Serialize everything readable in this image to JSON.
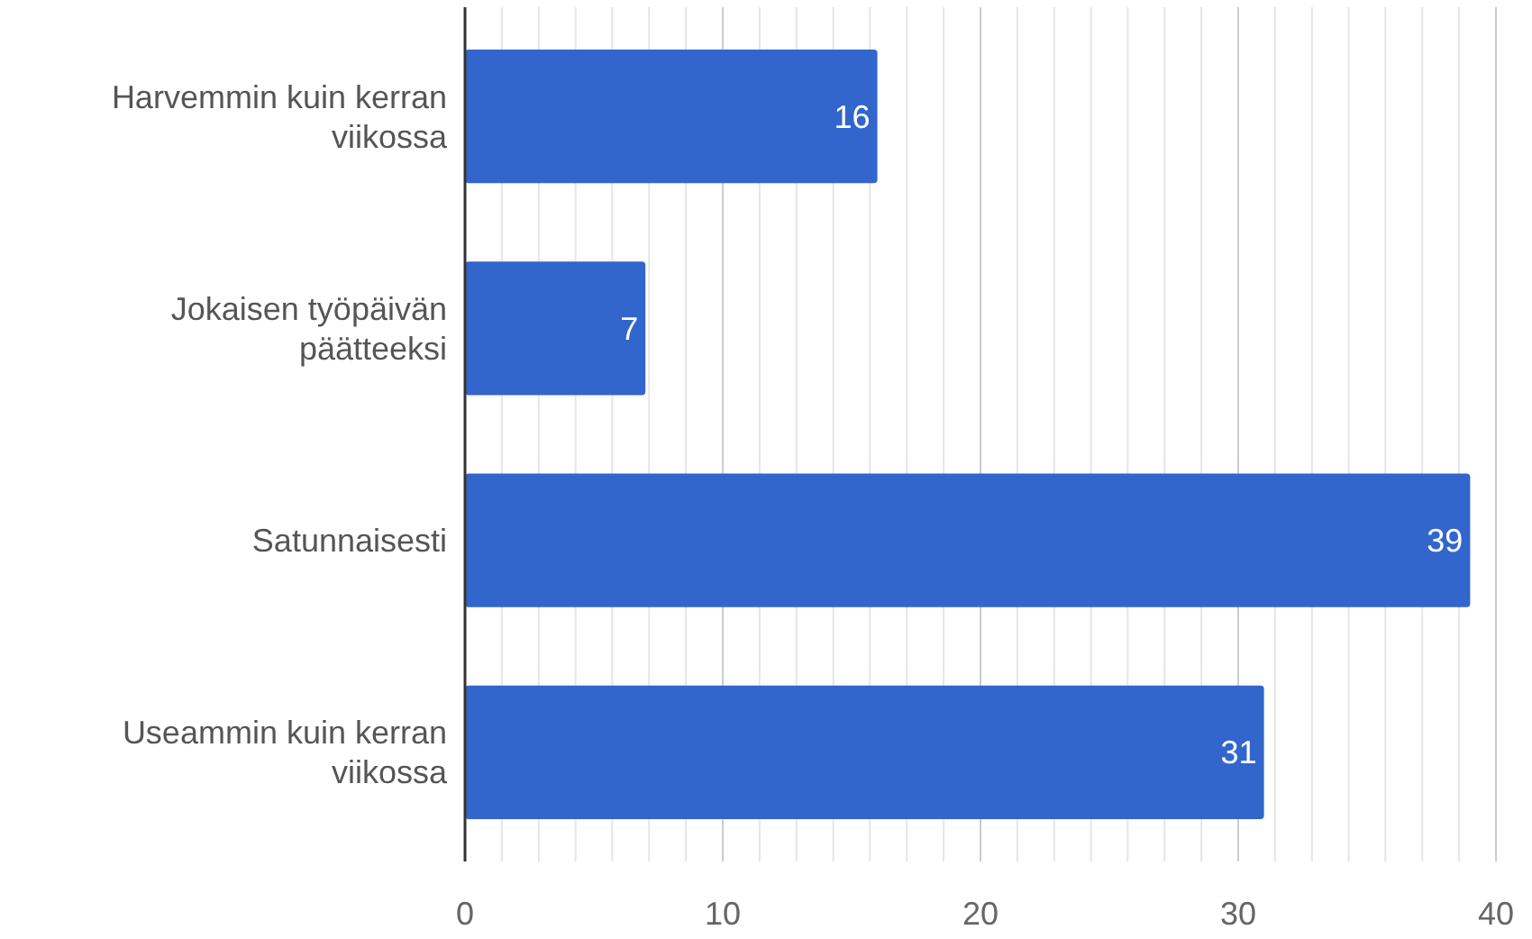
{
  "chart_data": {
    "type": "bar",
    "orientation": "horizontal",
    "categories": [
      "Harvemmin kuin kerran viikossa",
      "Jokaisen työpäivän päätteeksi",
      "Satunnaisesti",
      "Useammin kuin kerran viikossa"
    ],
    "values": [
      16,
      7,
      39,
      31
    ],
    "color": "#3366cc",
    "data_labels": true,
    "grid": "x",
    "xlim": [
      0,
      40
    ],
    "xticks": [
      0,
      {
        "value": 1.43,
        "label": null
      },
      {
        "value": 2.86,
        "label": null
      },
      {
        "value": 4.29,
        "label": null
      },
      {
        "value": 5.71,
        "label": null
      },
      {
        "value": 7.14,
        "label": null
      },
      {
        "value": 8.57,
        "label": null
      },
      10,
      {
        "value": 11.43,
        "label": null
      },
      {
        "value": 12.86,
        "label": null
      },
      {
        "value": 14.29,
        "label": null
      },
      {
        "value": 15.71,
        "label": null
      },
      {
        "value": 17.14,
        "label": null
      },
      {
        "value": 18.57,
        "label": null
      },
      20,
      {
        "value": 21.43,
        "label": null
      },
      {
        "value": 22.86,
        "label": null
      },
      {
        "value": 24.29,
        "label": null
      },
      {
        "value": 25.71,
        "label": null
      },
      {
        "value": 27.14,
        "label": null
      },
      {
        "value": 28.57,
        "label": null
      },
      30,
      {
        "value": 31.43,
        "label": null
      },
      {
        "value": 32.86,
        "label": null
      },
      {
        "value": 34.29,
        "label": null
      },
      {
        "value": 35.71,
        "label": null
      },
      {
        "value": 37.14,
        "label": null
      },
      {
        "value": 38.57,
        "label": null
      },
      40
    ]
  }
}
